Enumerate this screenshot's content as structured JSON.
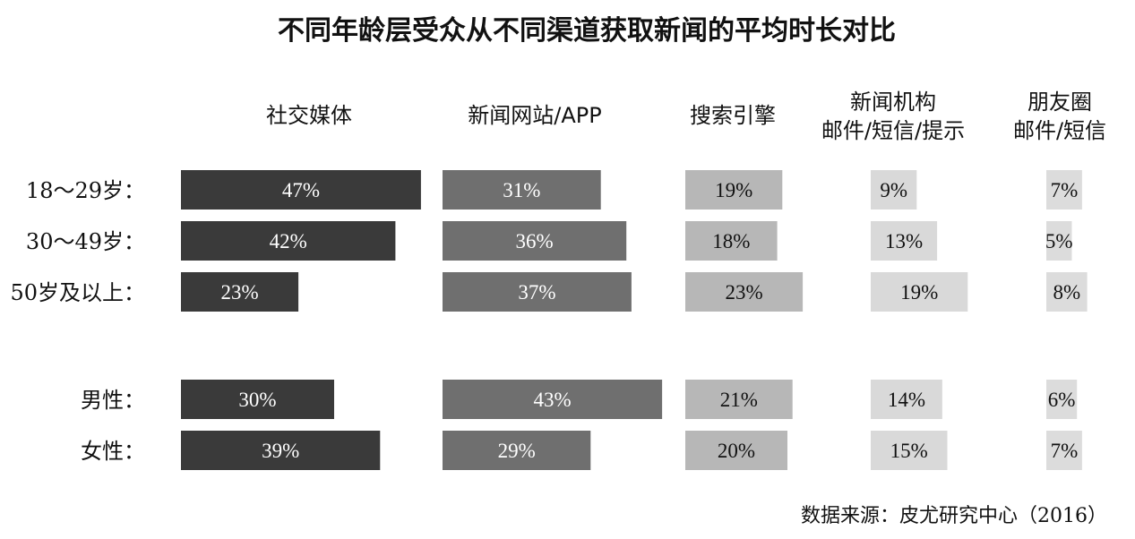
{
  "chart_data": {
    "type": "bar",
    "title": "不同年龄层受众从不同渠道获取新闻的平均时长对比",
    "source": "数据来源：皮尤研究中心（2016）",
    "columns": [
      {
        "lines": [
          "社交媒体"
        ],
        "color": "#3a3a3a",
        "label_color": "#ffffff"
      },
      {
        "lines": [
          "新闻网站/APP"
        ],
        "color": "#6f6f6f",
        "label_color": "#ffffff"
      },
      {
        "lines": [
          "搜索引擎"
        ],
        "color": "#b7b7b7",
        "label_color": "#111111"
      },
      {
        "lines": [
          "新闻机构",
          "邮件/短信/提示"
        ],
        "color": "#d9d9d9",
        "label_color": "#111111"
      },
      {
        "lines": [
          "朋友圈",
          "邮件/短信"
        ],
        "color": "#dcdcdc",
        "label_color": "#111111"
      }
    ],
    "rows": [
      {
        "label": "18～29岁：",
        "values": [
          47,
          31,
          19,
          9,
          7
        ],
        "labels": [
          "47%",
          "31%",
          "19%",
          "9%",
          "7%"
        ]
      },
      {
        "label": "30～49岁：",
        "values": [
          42,
          36,
          18,
          13,
          5
        ],
        "labels": [
          "42%",
          "36%",
          "18%",
          "13%",
          "5%"
        ]
      },
      {
        "label": "50岁及以上：",
        "values": [
          23,
          37,
          23,
          19,
          8
        ],
        "labels": [
          "23%",
          "37%",
          "23%",
          "19%",
          "8%"
        ]
      },
      {
        "label": "男性：",
        "values": [
          30,
          43,
          21,
          14,
          6
        ],
        "labels": [
          "30%",
          "43%",
          "21%",
          "14%",
          "6%"
        ]
      },
      {
        "label": "女性：",
        "values": [
          39,
          29,
          20,
          15,
          7
        ],
        "labels": [
          "39%",
          "29%",
          "20%",
          "15%",
          "7%"
        ]
      }
    ]
  }
}
